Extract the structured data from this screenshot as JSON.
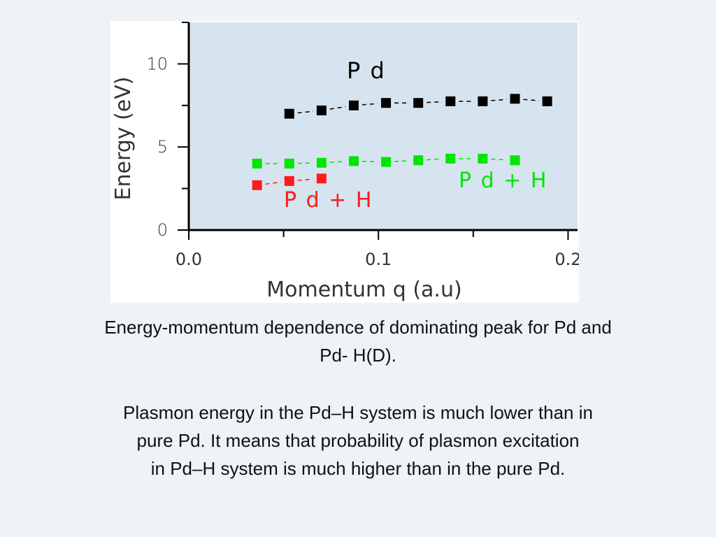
{
  "chart_data": {
    "type": "scatter",
    "xlabel": "Momentum q (a.u)",
    "ylabel": "Energy (eV)",
    "xlim": [
      0.0,
      0.205
    ],
    "ylim": [
      0,
      12.5
    ],
    "x_ticks": [
      "0.0",
      "0.1",
      "0.2"
    ],
    "x_tick_values": [
      0.0,
      0.1,
      0.2
    ],
    "y_ticks": [
      "0",
      "5",
      "10"
    ],
    "y_tick_values": [
      0,
      5,
      10
    ],
    "grid": false,
    "background": "#d6e4ef",
    "series": [
      {
        "name": "P d",
        "color": "#000000",
        "points": [
          [
            0.053,
            7.0
          ],
          [
            0.07,
            7.2
          ],
          [
            0.087,
            7.5
          ],
          [
            0.104,
            7.65
          ],
          [
            0.121,
            7.65
          ],
          [
            0.138,
            7.75
          ],
          [
            0.155,
            7.75
          ],
          [
            0.172,
            7.9
          ],
          [
            0.189,
            7.75
          ]
        ]
      },
      {
        "name": "P d + H",
        "color": "#00e600",
        "points": [
          [
            0.036,
            4.0
          ],
          [
            0.053,
            4.0
          ],
          [
            0.07,
            4.05
          ],
          [
            0.087,
            4.15
          ],
          [
            0.104,
            4.1
          ],
          [
            0.121,
            4.2
          ],
          [
            0.138,
            4.3
          ],
          [
            0.155,
            4.3
          ],
          [
            0.172,
            4.2
          ]
        ]
      },
      {
        "name": "P d + H",
        "color": "#ff1a1a",
        "points": [
          [
            0.036,
            2.7
          ],
          [
            0.053,
            2.95
          ],
          [
            0.07,
            3.1
          ]
        ]
      }
    ]
  },
  "caption": {
    "line1": "Energy-momentum dependence of dominating peak for Pd and",
    "line2": "Pd- H(D).",
    "line3": "Plasmon energy in the Pd–H system is much lower than in",
    "line4": "pure Pd. It means that probability of plasmon excitation",
    "line5": "in Pd–H system is much higher than in the pure  Pd."
  }
}
